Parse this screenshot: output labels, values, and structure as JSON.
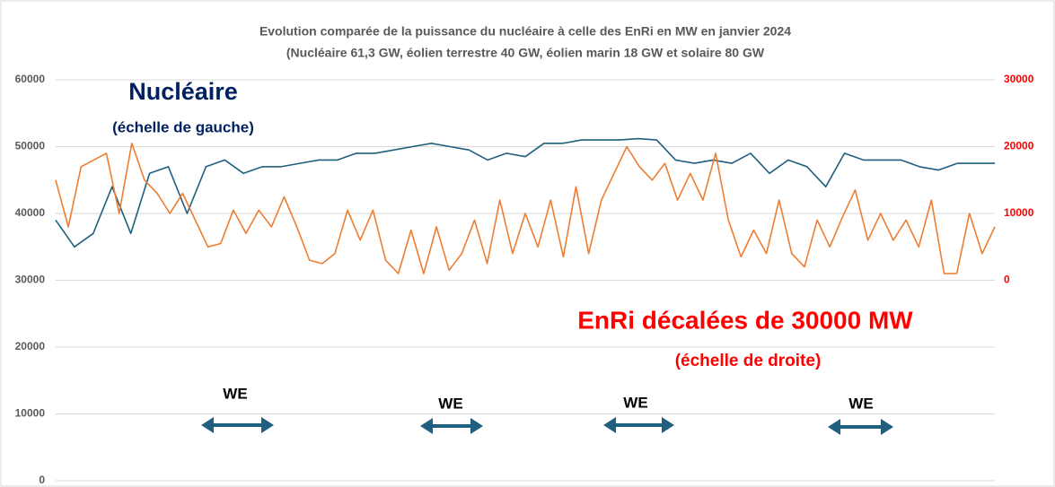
{
  "chart_data": {
    "type": "line",
    "title": [
      "Evolution comparée de la puissance du nucléaire à celle des EnRi en MW  en janvier  2024",
      "(Nucléaire 61,3 GW, éolien terrestre 40 GW, éolien marin 18 GW et solaire 80 GW"
    ],
    "ylim": [
      0,
      60000
    ],
    "yticks": [
      0,
      10000,
      20000,
      30000,
      40000,
      50000,
      60000
    ],
    "y2lim": [
      -30000,
      30000
    ],
    "y2ticks": [
      0,
      10000,
      20000,
      30000
    ],
    "grid": true,
    "series": [
      {
        "name": "Nucléaire",
        "color": "#1f5f7f",
        "values": [
          39000,
          35000,
          37000,
          44000,
          37000,
          46000,
          47000,
          40000,
          47000,
          48000,
          46000,
          47000,
          47000,
          47500,
          48000,
          48000,
          49000,
          49000,
          49500,
          50000,
          50500,
          50000,
          49500,
          48000,
          49000,
          48500,
          50500,
          50500,
          51000,
          51000,
          51000,
          51200,
          51000,
          48000,
          47500,
          48000,
          47500,
          49000,
          46000,
          48000,
          47000,
          44000,
          49000,
          48000,
          48000,
          48000,
          47000,
          46500,
          47500,
          47500,
          47500
        ]
      },
      {
        "name": "EnRi décalées de 30000 MW",
        "axis": "y2",
        "color": "#ed7d31",
        "values": [
          15000,
          8000,
          17000,
          18000,
          19000,
          10000,
          20500,
          15000,
          13000,
          10000,
          13000,
          9000,
          5000,
          5500,
          10500,
          7000,
          10500,
          8000,
          12500,
          8000,
          3000,
          2500,
          4000,
          10500,
          6000,
          10500,
          3000,
          1000,
          7500,
          1000,
          8000,
          1500,
          4000,
          9000,
          2500,
          12000,
          4000,
          10000,
          5000,
          12000,
          3500,
          14000,
          4000,
          12000,
          16000,
          20000,
          17000,
          15000,
          17500,
          12000,
          16000,
          12000,
          19000,
          9000,
          3500,
          7500,
          4000,
          12000,
          4000,
          2000,
          9000,
          5000,
          9500,
          13500,
          6000,
          10000,
          6000,
          9000,
          5000,
          12000,
          1000,
          1000,
          10000,
          4000,
          8000
        ]
      }
    ],
    "annotations": [
      "Nucléaire",
      "(échelle de gauche)",
      "EnRi décalées de 30000 MW",
      "(échelle de droite)",
      "WE",
      "WE",
      "WE",
      "WE"
    ]
  }
}
